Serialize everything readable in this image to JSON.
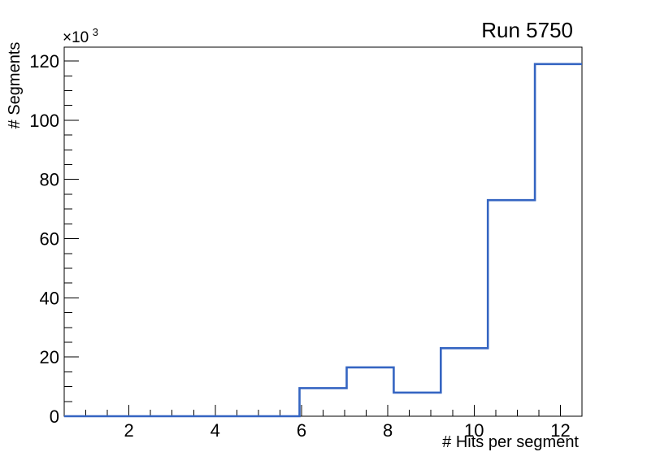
{
  "plot": {
    "background": "#ffffff",
    "frame_color": "#000000"
  },
  "chart_data": {
    "type": "bar",
    "subtype": "step-histogram-outline",
    "title": "Run 5750",
    "xlabel": "# Hits per segment",
    "ylabel": "# Segments",
    "y_multiplier_base": "×10",
    "y_multiplier_exp": "3",
    "xlim": [
      0.5,
      12.5
    ],
    "ylim": [
      0,
      124700
    ],
    "bin_edges": [
      0.5,
      1.5909,
      2.6818,
      3.7727,
      4.8636,
      5.9545,
      7.0455,
      8.1364,
      9.2273,
      10.3182,
      11.4091,
      12.5
    ],
    "counts": [
      0,
      0,
      0,
      0,
      0,
      9500,
      16500,
      8000,
      23000,
      73000,
      119000
    ],
    "x_major_ticks": [
      2,
      4,
      6,
      8,
      10,
      12
    ],
    "x_major_tick_labels": [
      "2",
      "4",
      "6",
      "8",
      "10",
      "12"
    ],
    "x_minor_step": 0.5,
    "y_major_ticks": [
      0,
      20000,
      40000,
      60000,
      80000,
      100000,
      120000
    ],
    "y_major_tick_labels": [
      "0",
      "20",
      "40",
      "60",
      "80",
      "100",
      "120"
    ],
    "y_minor_step": 5000,
    "grid": false,
    "legend": false,
    "line_color": "#3565c2",
    "line_width": 2.6
  }
}
